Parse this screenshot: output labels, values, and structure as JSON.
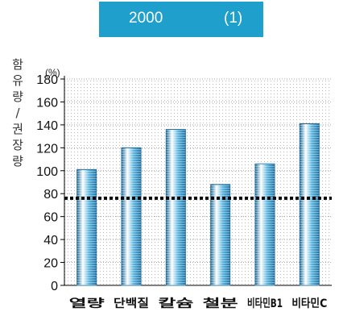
{
  "header": {
    "year": "2000",
    "index": "(1)"
  },
  "colors": {
    "header_bg": "#1e9fcc",
    "bar": "#49a9d3",
    "threshold": "#000000"
  },
  "chart_data": {
    "type": "bar",
    "title": "",
    "ylabel": "함유량 / 권장량",
    "yunit": "(%)",
    "ylim": [
      0,
      180
    ],
    "yticks": [
      0,
      20,
      40,
      60,
      80,
      100,
      120,
      140,
      160,
      180
    ],
    "grid": true,
    "categories": [
      "열량",
      "단백질",
      "칼슘",
      "철분",
      "비타민B1",
      "비타민C"
    ],
    "values": [
      101,
      120,
      136,
      88,
      106,
      141
    ],
    "reference_line": {
      "value": 76,
      "style": "dotted"
    }
  }
}
